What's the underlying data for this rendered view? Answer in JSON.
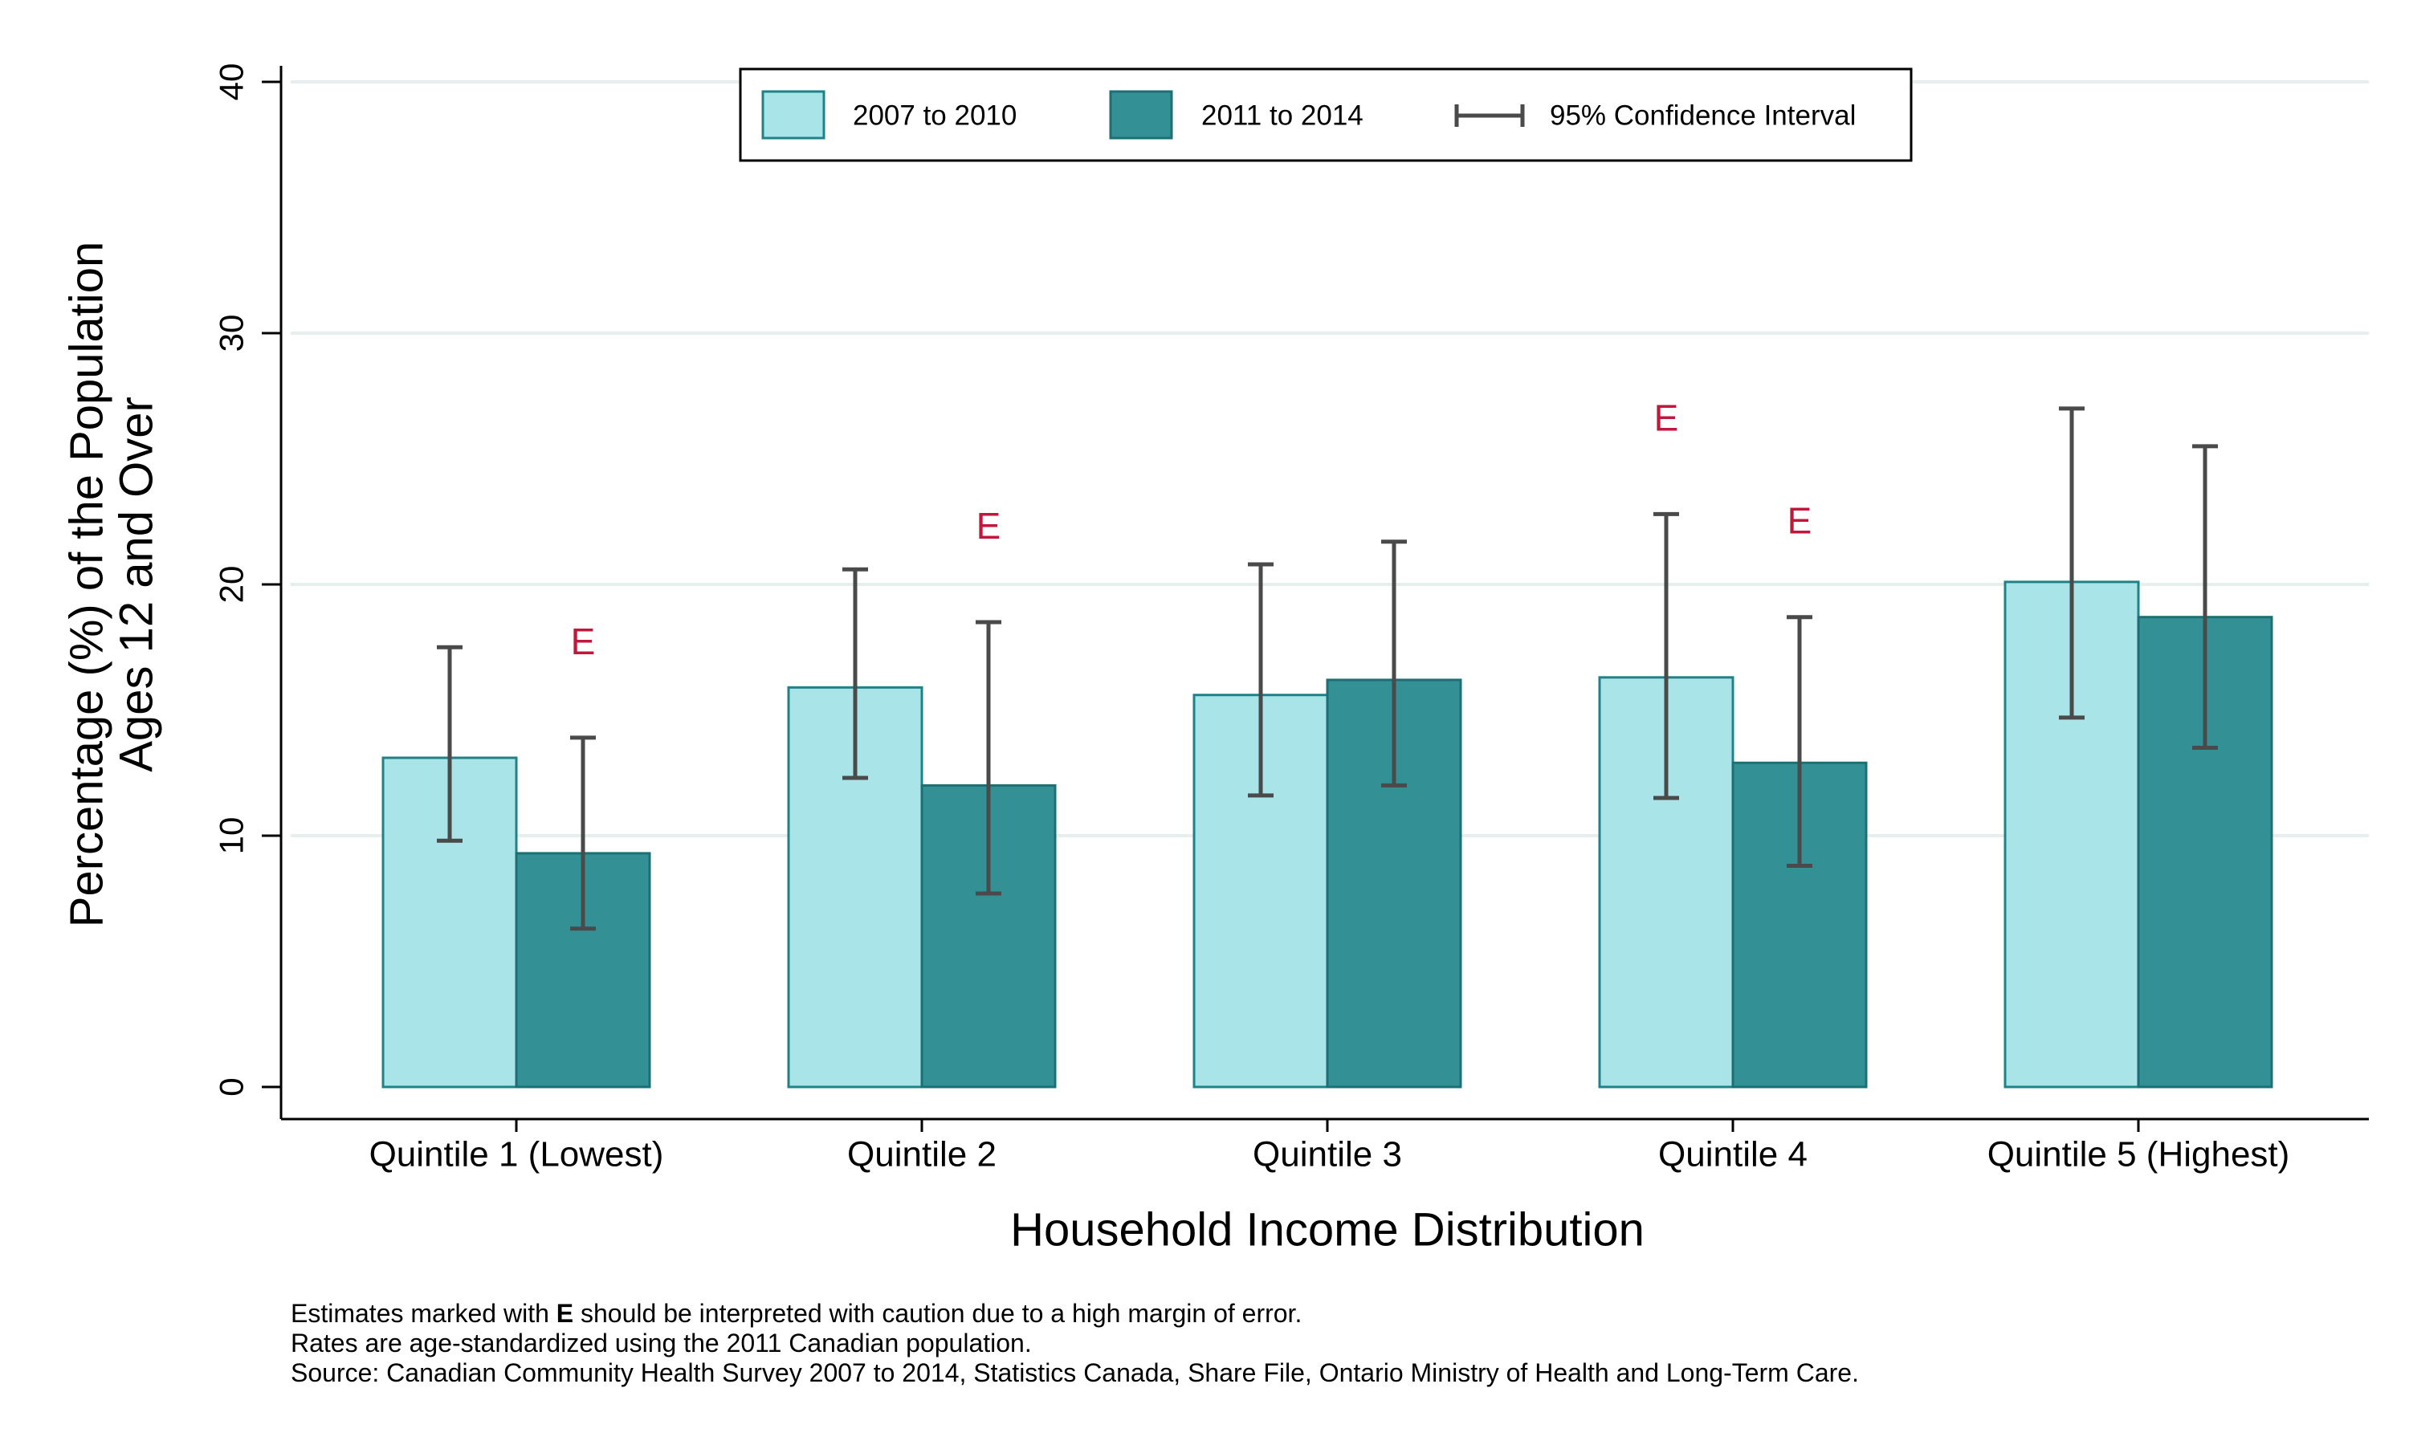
{
  "chart_data": {
    "type": "bar",
    "title": "",
    "xlabel": "Household Income Distribution",
    "ylabel_lines": [
      "Percentage (%) of the Population",
      "Ages 12 and Over"
    ],
    "ylim": [
      0,
      40
    ],
    "yticks": [
      0,
      10,
      20,
      30,
      40
    ],
    "grid": true,
    "legend_position": "top",
    "categories": [
      "Quintile 1 (Lowest)",
      "Quintile 2",
      "Quintile 3",
      "Quintile 4",
      "Quintile 5 (Highest)"
    ],
    "series": [
      {
        "name": "2007 to 2010",
        "color": "#a8e4e8",
        "edge_color": "#1f8287",
        "values": [
          13.1,
          15.9,
          15.6,
          16.3,
          20.1
        ],
        "ci_low": [
          9.8,
          12.3,
          11.6,
          11.5,
          14.7
        ],
        "ci_high": [
          17.5,
          20.6,
          20.8,
          22.8,
          27.0
        ],
        "flags": [
          "",
          "",
          "",
          "E",
          ""
        ]
      },
      {
        "name": "2011 to 2014",
        "color": "#339196",
        "edge_color": "#1d6f73",
        "values": [
          9.3,
          12.0,
          16.2,
          12.9,
          18.7
        ],
        "ci_low": [
          6.3,
          7.7,
          12.0,
          8.8,
          13.5
        ],
        "ci_high": [
          13.9,
          18.5,
          21.7,
          18.7,
          25.5
        ],
        "flags": [
          "E",
          "E",
          "",
          "E",
          ""
        ]
      }
    ],
    "ci_legend_label": "95% Confidence Interval",
    "ci_color": "#4a4a4a",
    "flag_color": "#c0183c",
    "grid_color": "#e6efee"
  },
  "footnotes": {
    "line1_before": "Estimates marked with ",
    "line1_bold": "E",
    "line1_after": " should be interpreted with caution due to a high margin of error.",
    "line2": "Rates are age-standardized using the 2011 Canadian population.",
    "line3": "Source: Canadian Community Health Survey 2007 to 2014, Statistics Canada, Share File, Ontario Ministry of Health and Long-Term Care."
  }
}
